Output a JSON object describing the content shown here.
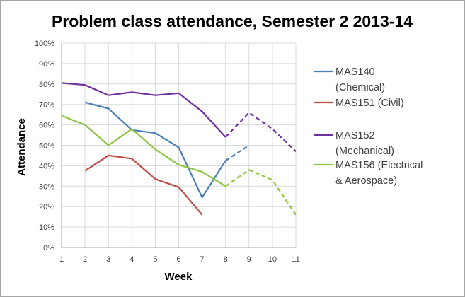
{
  "chart_data": {
    "type": "line",
    "title": "Problem class attendance, Semester 2 2013-14",
    "xlabel": "Week",
    "ylabel": "Attendance",
    "x": [
      1,
      2,
      3,
      4,
      5,
      6,
      7,
      8,
      9,
      10,
      11
    ],
    "x_tick_labels": [
      "1",
      "2",
      "3",
      "4",
      "5",
      "6",
      "7",
      "8",
      "9",
      "10",
      "11"
    ],
    "ylim": [
      0,
      100
    ],
    "y_ticks": [
      0,
      10,
      20,
      30,
      40,
      50,
      60,
      70,
      80,
      90,
      100
    ],
    "y_tick_labels": [
      "0%",
      "10%",
      "20%",
      "30%",
      "40%",
      "50%",
      "60%",
      "70%",
      "80%",
      "90%",
      "100%"
    ],
    "grid": true,
    "legend_position": "right",
    "series": [
      {
        "name": "MAS140 (Chemical)",
        "legend_lines": [
          "MAS140",
          "(Chemical)"
        ],
        "color": "#4a7ebb",
        "values": [
          null,
          71,
          68,
          57.5,
          56,
          49,
          24.5,
          42.5,
          50,
          null,
          null
        ],
        "dashed_from_x": 8
      },
      {
        "name": "MAS151 (Civil)",
        "legend_lines": [
          "MAS151 (Civil)"
        ],
        "color": "#be4b48",
        "values": [
          null,
          37.5,
          45,
          43.5,
          33.5,
          29.5,
          16,
          null,
          null,
          null,
          null
        ],
        "dashed_from_x": null
      },
      {
        "name": "MAS152 (Mechanical)",
        "legend_lines": [
          "MAS152",
          "(Mechanical)"
        ],
        "color": "#7030a0",
        "values": [
          80.5,
          79.5,
          74.5,
          76,
          74.5,
          75.5,
          66.5,
          54,
          66,
          58,
          47
        ],
        "dashed_from_x": 8
      },
      {
        "name": "MAS156 (Electrical & Aerospace)",
        "legend_lines": [
          "MAS156 (Electrical",
          "& Aerospace)"
        ],
        "color": "#8cc63f",
        "values": [
          64.5,
          60,
          50,
          58,
          48,
          40.5,
          37,
          30,
          38,
          33,
          16
        ],
        "dashed_from_x": 8
      }
    ]
  }
}
